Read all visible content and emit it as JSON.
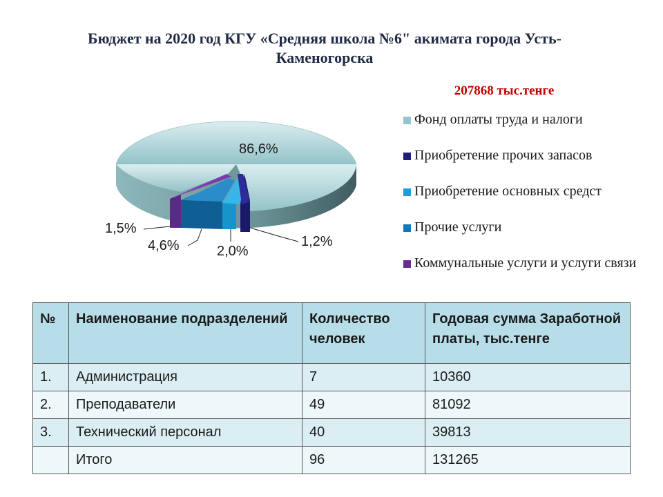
{
  "title": "Бюджет на 2020 год КГУ «Средняя школа №6\" акимата города Усть-Каменогорска",
  "total": "207868 тыс.тенге",
  "chart_data": {
    "type": "pie",
    "categories": [
      "Фонд оплаты труда и налоги",
      "Приобретение прочих запасов",
      "Приобретение основных средст",
      "Прочие услуги",
      "Коммунальные услуги и услуги связи"
    ],
    "values": [
      86.6,
      1.2,
      2.0,
      4.6,
      1.5
    ],
    "value_labels": [
      "86,6%",
      "1,2%",
      "2,0%",
      "4,6%",
      "1,5%"
    ],
    "colors": [
      "#93c6cc",
      "#1f1f7a",
      "#1aa0d8",
      "#1478b8",
      "#6a2c91"
    ],
    "legend_position": "right",
    "style": "3D exploded"
  },
  "table": {
    "headers": [
      "№",
      "Наименование подразделений",
      "Количество человек",
      "Годовая сумма Заработной платы, тыс.тенге"
    ],
    "rows": [
      [
        "1.",
        "Администрация",
        "7",
        "10360"
      ],
      [
        "2.",
        "Преподаватели",
        "49",
        "81092"
      ],
      [
        "3.",
        "Технический персонал",
        "40",
        "39813"
      ],
      [
        "",
        "Итого",
        "96",
        "131265"
      ]
    ]
  }
}
